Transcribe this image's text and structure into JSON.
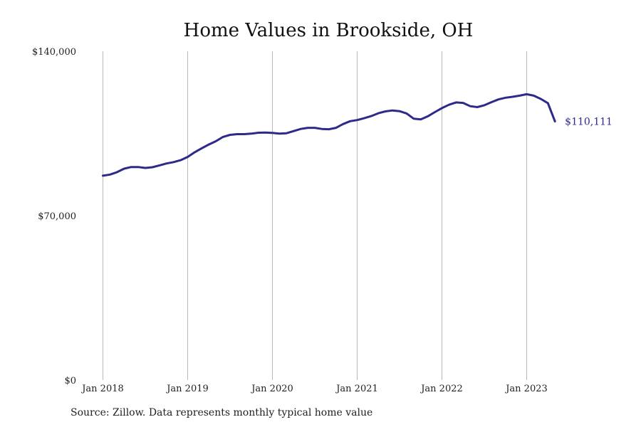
{
  "title": "Home Values in Brookside, OH",
  "source": "Source: Zillow. Data represents monthly typical home value",
  "chart_data": {
    "type": "line",
    "title": "Home Values in Brookside, OH",
    "xlabel": "",
    "ylabel": "",
    "x_ticks": [
      "Jan 2018",
      "Jan 2019",
      "Jan 2020",
      "Jan 2021",
      "Jan 2022",
      "Jan 2023"
    ],
    "y_ticks": [
      "$0",
      "$70,000",
      "$140,000"
    ],
    "ylim": [
      0,
      140000
    ],
    "grid": "vertical",
    "line_color": "#2e2a8a",
    "end_label": "$110,111",
    "x": [
      "2018-01",
      "2018-02",
      "2018-03",
      "2018-04",
      "2018-05",
      "2018-06",
      "2018-07",
      "2018-08",
      "2018-09",
      "2018-10",
      "2018-11",
      "2018-12",
      "2019-01",
      "2019-02",
      "2019-03",
      "2019-04",
      "2019-05",
      "2019-06",
      "2019-07",
      "2019-08",
      "2019-09",
      "2019-10",
      "2019-11",
      "2019-12",
      "2020-01",
      "2020-02",
      "2020-03",
      "2020-04",
      "2020-05",
      "2020-06",
      "2020-07",
      "2020-08",
      "2020-09",
      "2020-10",
      "2020-11",
      "2020-12",
      "2021-01",
      "2021-02",
      "2021-03",
      "2021-04",
      "2021-05",
      "2021-06",
      "2021-07",
      "2021-08",
      "2021-09",
      "2021-10",
      "2021-11",
      "2021-12",
      "2022-01",
      "2022-02",
      "2022-03",
      "2022-04",
      "2022-05",
      "2022-06",
      "2022-07",
      "2022-08",
      "2022-09",
      "2022-10",
      "2022-11",
      "2022-12",
      "2023-01",
      "2023-02",
      "2023-03",
      "2023-04",
      "2023-05"
    ],
    "series": [
      {
        "values": [
          87000,
          87500,
          88500,
          90000,
          90700,
          90700,
          90300,
          90600,
          91400,
          92200,
          92800,
          93600,
          95000,
          97000,
          98700,
          100300,
          101700,
          103500,
          104400,
          104700,
          104700,
          104900,
          105300,
          105400,
          105200,
          104900,
          105100,
          106000,
          106900,
          107400,
          107400,
          106900,
          106800,
          107400,
          109000,
          110200,
          110700,
          111500,
          112400,
          113600,
          114400,
          114800,
          114500,
          113500,
          111300,
          111000,
          112300,
          114100,
          115800,
          117200,
          118200,
          118000,
          116600,
          116200,
          117000,
          118300,
          119500,
          120200,
          120600,
          121100,
          121700,
          121100,
          119700,
          117900,
          110111
        ]
      }
    ]
  }
}
